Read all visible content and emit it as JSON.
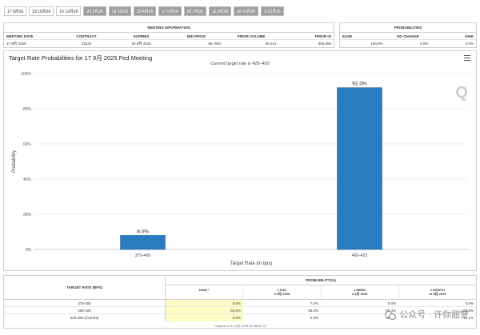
{
  "tabs": [
    {
      "label": "17 9月26",
      "active": true
    },
    {
      "label": "29 10月26",
      "active": true
    },
    {
      "label": "10 12月26",
      "active": true
    },
    {
      "label": "28 1月26",
      "active": false
    },
    {
      "label": "18 3月26",
      "active": false
    },
    {
      "label": "29 4月26",
      "active": false
    },
    {
      "label": "17 6月26",
      "active": false
    },
    {
      "label": "29 7月26",
      "active": false
    },
    {
      "label": "16 9月26",
      "active": false
    },
    {
      "label": "28 10月26",
      "active": false
    },
    {
      "label": "9 12月26",
      "active": false
    }
  ],
  "meeting_info": {
    "title": "MEETING INFORMATION",
    "headers": [
      "MEETING DATE",
      "CONTRACT",
      "EXPIRES",
      "MID PRICE",
      "PRIOR VOLUME",
      "PRIOR OI"
    ],
    "values": [
      "17 9月 2025",
      "ZQU5",
      "30 9月 2025",
      "95.7863",
      "99,141",
      "355,068"
    ]
  },
  "probabilities": {
    "title": "PROBABILITIES",
    "headers": [
      "EASE",
      "NO CHANGE",
      "HIKE"
    ],
    "values": [
      "100.0%",
      "0.0%",
      "0.0%"
    ]
  },
  "chart": {
    "title": "Target Rate Probabilities for 17 9月 2025 Fed Meeting",
    "subtitle": "Current target rate is 425–450",
    "menu_icon": "hamburger-menu-icon",
    "bar_color": "#2b7bc0",
    "watermark_glyph": "Q"
  },
  "chart_data": {
    "type": "bar",
    "title": "Target Rate Probabilities for 17 9月 2025 Fed Meeting",
    "subtitle": "Current target rate is 425–450",
    "categories": [
      "375–400",
      "400–425"
    ],
    "values": [
      8.0,
      92.0
    ],
    "data_labels": [
      "8.0%",
      "92.0%"
    ],
    "xlabel": "Target Rate (in bps)",
    "ylabel": "Probability",
    "ylim": [
      0,
      100
    ],
    "yticks": [
      "0%",
      "20%",
      "40%",
      "60%",
      "80%",
      "100%"
    ],
    "grid": true,
    "legend": "none"
  },
  "prob_table": {
    "left_header": "TARGET RATE (BPS)",
    "right_header": "PROBABILITY(%)",
    "columns": [
      {
        "label": "NOW *",
        "date": ""
      },
      {
        "label": "1 DAY",
        "date": "9 9月 2025"
      },
      {
        "label": "1 WEEK",
        "date": "4 9月 2025"
      },
      {
        "label": "1 MONTH",
        "date": "11 8月 2025"
      }
    ],
    "rows": [
      {
        "target": "375-400",
        "values": [
          "8.0%",
          "7.0%",
          "0.0%",
          "0.0%"
        ]
      },
      {
        "target": "400-425",
        "values": [
          "92.0%",
          "93.0%",
          "89.4%",
          "85.9%"
        ]
      },
      {
        "target": "425-450 (Current)",
        "values": [
          "0.0%",
          "0.0%",
          "10.6%",
          "14.1%"
        ]
      }
    ],
    "footnote": "* Data as of 11 9月 2025 01:58:51 CT"
  },
  "watermark": {
    "text": "公众号 · 许你甜梦"
  }
}
